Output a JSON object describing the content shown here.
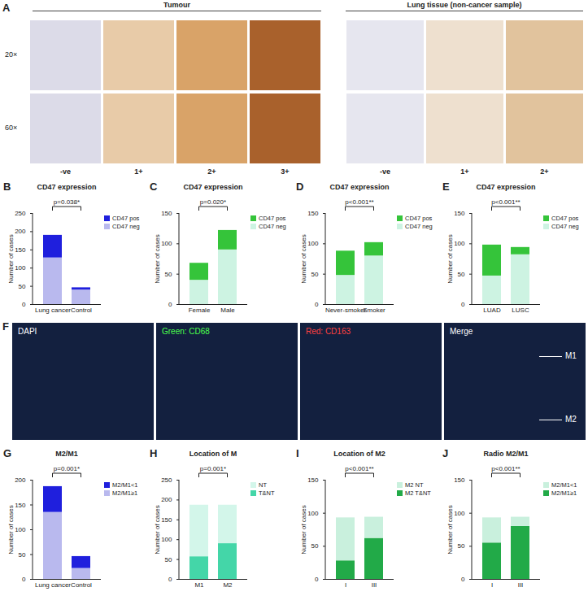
{
  "figure": {
    "panel_a": {
      "letter": "A",
      "groups": [
        "Tumour",
        "Lung tissue (non-cancer sample)"
      ],
      "magnifications": [
        "20×",
        "60×"
      ],
      "tumour_grades": [
        "-ve",
        "1+",
        "2+",
        "3+"
      ],
      "lung_grades": [
        "-ve",
        "1+",
        "2+"
      ]
    },
    "panel_f": {
      "letter": "F",
      "channels": [
        "DAPI",
        "Green: CD68",
        "Red: CD163",
        "Merge"
      ],
      "markers": [
        "M1",
        "M2"
      ]
    }
  },
  "chart_data": [
    {
      "panel": "B",
      "type": "bar",
      "stacked": true,
      "title": "CD47 expression",
      "annotation": "p=0.038*",
      "ylabel": "Number of cases",
      "categories": [
        "Lung cancer",
        "Control"
      ],
      "ylim": [
        0,
        250
      ],
      "yticks": [
        0,
        50,
        100,
        150,
        200,
        250
      ],
      "legend": "top-right",
      "series": [
        {
          "name": "CD47 neg",
          "color": "#b9b9ee",
          "values": [
            128,
            40
          ]
        },
        {
          "name": "CD47 pos",
          "color": "#1f1fdd",
          "values": [
            62,
            6
          ]
        }
      ]
    },
    {
      "panel": "C",
      "type": "bar",
      "stacked": true,
      "title": "CD47 expression",
      "annotation": "p=0.020*",
      "ylabel": "Number of cases",
      "categories": [
        "Female",
        "Male"
      ],
      "ylim": [
        0,
        150
      ],
      "yticks": [
        0,
        50,
        100,
        150
      ],
      "legend": "top-right",
      "series": [
        {
          "name": "CD47 neg",
          "color": "#cdf3e2",
          "values": [
            40,
            90
          ]
        },
        {
          "name": "CD47 pos",
          "color": "#35c43a",
          "values": [
            28,
            32
          ]
        }
      ]
    },
    {
      "panel": "D",
      "type": "bar",
      "stacked": true,
      "title": "CD47 expression",
      "annotation": "p<0.001**",
      "ylabel": "Number of cases",
      "categories": [
        "Never-smoker",
        "Smoker"
      ],
      "ylim": [
        0,
        150
      ],
      "yticks": [
        0,
        50,
        100,
        150
      ],
      "legend": "top-right",
      "series": [
        {
          "name": "CD47 neg",
          "color": "#cdf3e2",
          "values": [
            48,
            80
          ]
        },
        {
          "name": "CD47 pos",
          "color": "#35c43a",
          "values": [
            40,
            22
          ]
        }
      ]
    },
    {
      "panel": "E",
      "type": "bar",
      "stacked": true,
      "title": "CD47 expression",
      "annotation": "p<0.001**",
      "ylabel": "Number of cases",
      "categories": [
        "LUAD",
        "LUSC"
      ],
      "ylim": [
        0,
        150
      ],
      "yticks": [
        0,
        50,
        100,
        150
      ],
      "legend": "top-right",
      "series": [
        {
          "name": "CD47 neg",
          "color": "#cdf3e2",
          "values": [
            47,
            82
          ]
        },
        {
          "name": "CD47 pos",
          "color": "#35c43a",
          "values": [
            51,
            12
          ]
        }
      ]
    },
    {
      "panel": "G",
      "type": "bar",
      "stacked": true,
      "title": "M2/M1",
      "annotation": "p=0.001*",
      "ylabel": "Number of cases",
      "categories": [
        "Lung cancer",
        "Control"
      ],
      "ylim": [
        0,
        200
      ],
      "yticks": [
        0,
        50,
        100,
        150,
        200
      ],
      "legend": "top-right",
      "series": [
        {
          "name": "M2/M1≥1",
          "color": "#b9b9ee",
          "values": [
            135,
            22
          ]
        },
        {
          "name": "M2/M1<1",
          "color": "#1f1fdd",
          "values": [
            52,
            24
          ]
        }
      ]
    },
    {
      "panel": "H",
      "type": "bar",
      "stacked": true,
      "title": "Location of M",
      "annotation": "p=0.001*",
      "ylabel": "Number of cases",
      "categories": [
        "M1",
        "M2"
      ],
      "ylim": [
        0,
        250
      ],
      "yticks": [
        0,
        50,
        100,
        150,
        200,
        250
      ],
      "legend": "top-right",
      "series": [
        {
          "name": "T&NT",
          "color": "#44d6a8",
          "values": [
            57,
            90
          ]
        },
        {
          "name": "NT",
          "color": "#d3f6ea",
          "values": [
            130,
            97
          ]
        }
      ]
    },
    {
      "panel": "I",
      "type": "bar",
      "stacked": true,
      "title": "Location of M2",
      "annotation": "p<0.001**",
      "ylabel": "Number of cases",
      "categories": [
        "I",
        "III"
      ],
      "ylim": [
        0,
        150
      ],
      "yticks": [
        0,
        50,
        100,
        150
      ],
      "legend": "top-right",
      "series": [
        {
          "name": "M2 T&NT",
          "color": "#22aa48",
          "values": [
            28,
            62
          ]
        },
        {
          "name": "M2 NT",
          "color": "#c9f0dd",
          "values": [
            65,
            32
          ]
        }
      ]
    },
    {
      "panel": "J",
      "type": "bar",
      "stacked": true,
      "title": "Radio M2/M1",
      "annotation": "p<0.001**",
      "ylabel": "Number of cases",
      "categories": [
        "I",
        "III"
      ],
      "ylim": [
        0,
        150
      ],
      "yticks": [
        0,
        50,
        100,
        150
      ],
      "legend": "top-right",
      "series": [
        {
          "name": "M2/M1≥1",
          "color": "#22aa48",
          "values": [
            55,
            80
          ]
        },
        {
          "name": "M2/M1<1",
          "color": "#c9f0dd",
          "values": [
            38,
            14
          ]
        }
      ]
    }
  ]
}
